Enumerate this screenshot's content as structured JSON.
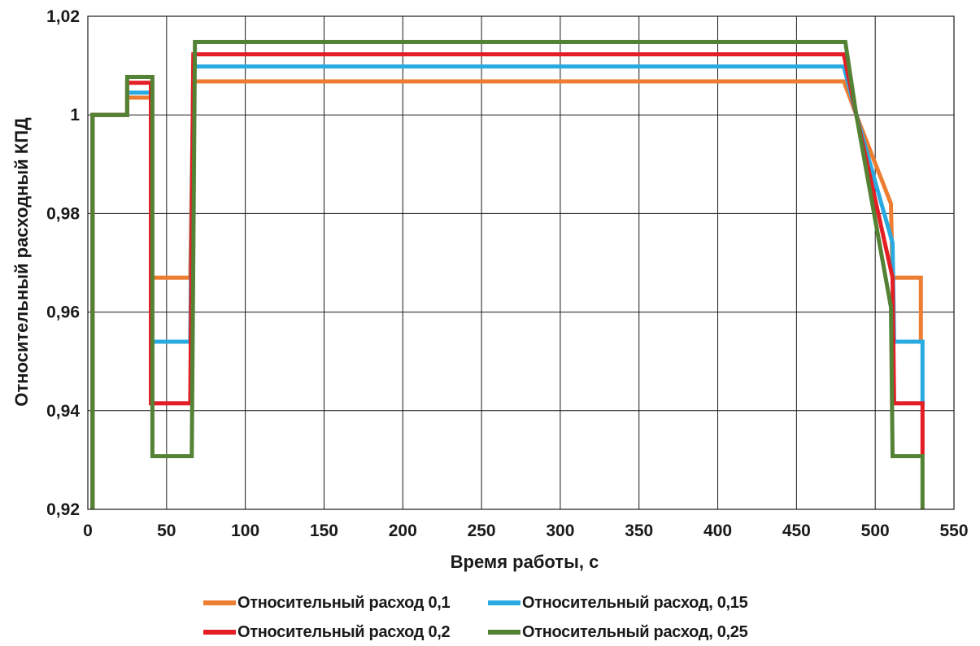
{
  "chart_data": {
    "type": "line",
    "title": "",
    "xlabel": "Время работы, с",
    "ylabel": "Относительный расходный КПД",
    "xlim": [
      0,
      550
    ],
    "ylim": [
      0.92,
      1.02
    ],
    "xticks": [
      0,
      50,
      100,
      150,
      200,
      250,
      300,
      350,
      400,
      450,
      500,
      550
    ],
    "xtick_labels": [
      "0",
      "50",
      "100",
      "150",
      "200",
      "250",
      "300",
      "350",
      "400",
      "450",
      "500",
      "550"
    ],
    "yticks": [
      0.92,
      0.94,
      0.96,
      0.98,
      1.0,
      1.02
    ],
    "ytick_labels": [
      "0,92",
      "0,94",
      "0,96",
      "0,98",
      "1",
      "1,02"
    ],
    "grid": true,
    "legend_position": "bottom",
    "series": [
      {
        "name": "Относительный расход 0,1",
        "color": "#ed7d31",
        "x": [
          3,
          3,
          25,
          25,
          40,
          40,
          65,
          67,
          480,
          488,
          510,
          511,
          529,
          529
        ],
        "y": [
          0.92,
          1.0,
          1.0,
          1.0035,
          1.0035,
          0.967,
          0.967,
          1.0068,
          1.0068,
          1.0,
          0.982,
          0.967,
          0.967,
          0.954
        ]
      },
      {
        "name": "Относительный расход, 0,15",
        "color": "#29abe2",
        "x": [
          3,
          3,
          25,
          25,
          40,
          40,
          65,
          67,
          480,
          488,
          511,
          512,
          530,
          530
        ],
        "y": [
          0.92,
          1.0,
          1.0,
          1.0045,
          1.0045,
          0.954,
          0.954,
          1.0098,
          1.0098,
          1.0,
          0.974,
          0.954,
          0.954,
          0.941
        ]
      },
      {
        "name": "Относительный расход 0,2",
        "color": "#e31e24",
        "x": [
          3,
          3,
          25,
          25,
          40,
          40,
          65,
          67,
          480,
          488,
          511,
          512,
          530,
          530
        ],
        "y": [
          0.92,
          1.0,
          1.0,
          1.0065,
          1.0065,
          0.9415,
          0.9415,
          1.0123,
          1.0123,
          1.0,
          0.967,
          0.9415,
          0.9415,
          0.931
        ]
      },
      {
        "name": "Относительный расход, 0,25",
        "color": "#548235",
        "x": [
          3,
          3,
          25,
          25,
          41,
          41,
          66,
          68,
          481,
          488,
          510,
          511,
          530,
          530
        ],
        "y": [
          0.92,
          1.0,
          1.0,
          1.0077,
          1.0077,
          0.9308,
          0.9308,
          1.0148,
          1.0148,
          1.0,
          0.961,
          0.9308,
          0.9308,
          0.92
        ]
      }
    ]
  }
}
